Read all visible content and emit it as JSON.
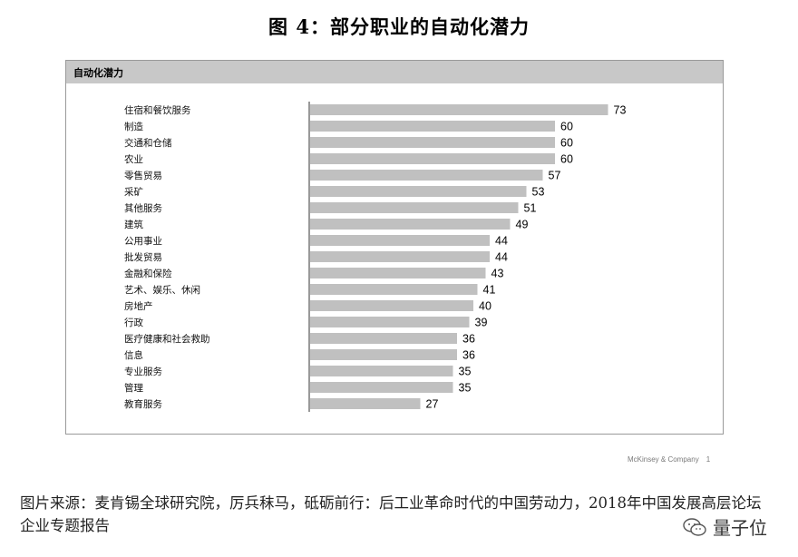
{
  "figure_title": "图 4：部分职业的自动化潜力",
  "chart_data": {
    "type": "bar",
    "orientation": "horizontal",
    "title": "自动化潜力",
    "categories": [
      "住宿和餐饮服务",
      "制造",
      "交通和仓储",
      "农业",
      "零售贸易",
      "采矿",
      "其他服务",
      "建筑",
      "公用事业",
      "批发贸易",
      "金融和保险",
      "艺术、娱乐、休闲",
      "房地产",
      "行政",
      "医疗健康和社会救助",
      "信息",
      "专业服务",
      "管理",
      "教育服务"
    ],
    "values": [
      73,
      60,
      60,
      60,
      57,
      53,
      51,
      49,
      44,
      44,
      43,
      41,
      40,
      39,
      36,
      36,
      35,
      35,
      27
    ],
    "xlim": [
      0,
      100
    ],
    "bar_color": "#c0c0c0",
    "data_labels": true,
    "grid": false
  },
  "footer": {
    "company": "McKinsey & Company",
    "page": "1"
  },
  "source": "图片来源：麦肯锡全球研究院，厉兵秣马，砥砺前行：后工业革命时代的中国劳动力，2018年中国发展高层论坛企业专题报告",
  "watermark": {
    "text": "量子位",
    "icon": "wechat-icon"
  }
}
